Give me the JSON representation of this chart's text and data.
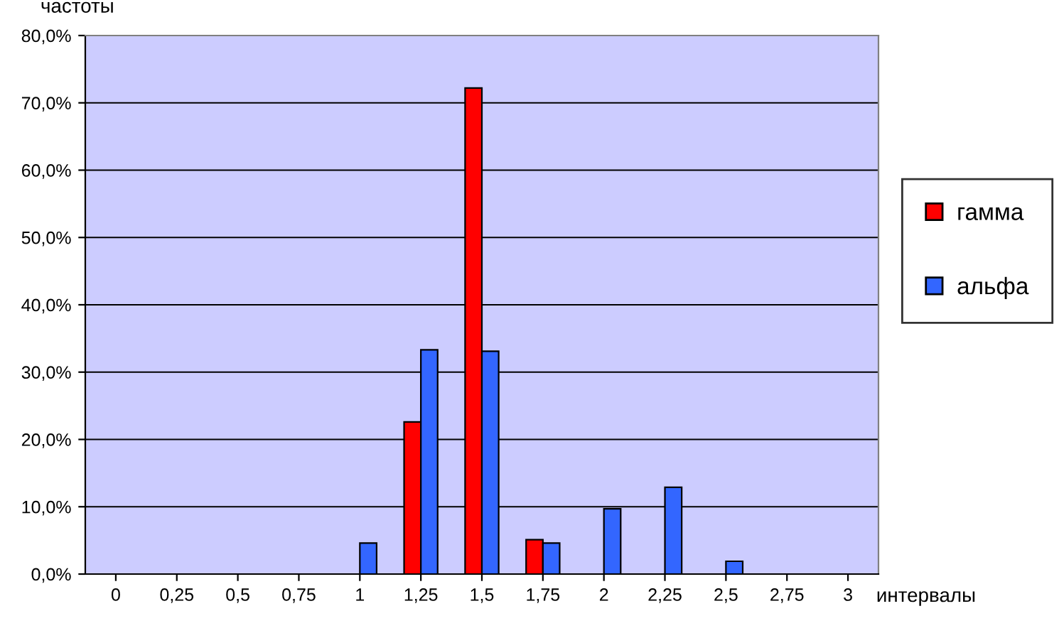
{
  "chart_data": {
    "type": "bar",
    "xlabel": "интервалы",
    "ylabel": "частоты",
    "categories": [
      "0",
      "0,25",
      "0,5",
      "0,75",
      "1",
      "1,25",
      "1,5",
      "1,75",
      "2",
      "2,25",
      "2,5",
      "2,75",
      "3"
    ],
    "series": [
      {
        "name": "гамма",
        "color": "#ff0000",
        "values": [
          null,
          null,
          null,
          null,
          null,
          22.6,
          72.2,
          5.1,
          null,
          null,
          null,
          null,
          null
        ]
      },
      {
        "name": "альфа",
        "color": "#3366ff",
        "values": [
          null,
          null,
          null,
          null,
          4.6,
          33.3,
          33.1,
          4.6,
          9.7,
          12.9,
          1.9,
          null,
          null
        ]
      }
    ],
    "ylim": [
      0,
      80
    ],
    "yticks": [
      {
        "value": 0,
        "label": "0,0%"
      },
      {
        "value": 10,
        "label": "10,0%"
      },
      {
        "value": 20,
        "label": "20,0%"
      },
      {
        "value": 30,
        "label": "30,0%"
      },
      {
        "value": 40,
        "label": "40,0%"
      },
      {
        "value": 50,
        "label": "50,0%"
      },
      {
        "value": 60,
        "label": "60,0%"
      },
      {
        "value": 70,
        "label": "70,0%"
      },
      {
        "value": 80,
        "label": "80,0%"
      }
    ],
    "grid": "y",
    "legend": "right"
  }
}
